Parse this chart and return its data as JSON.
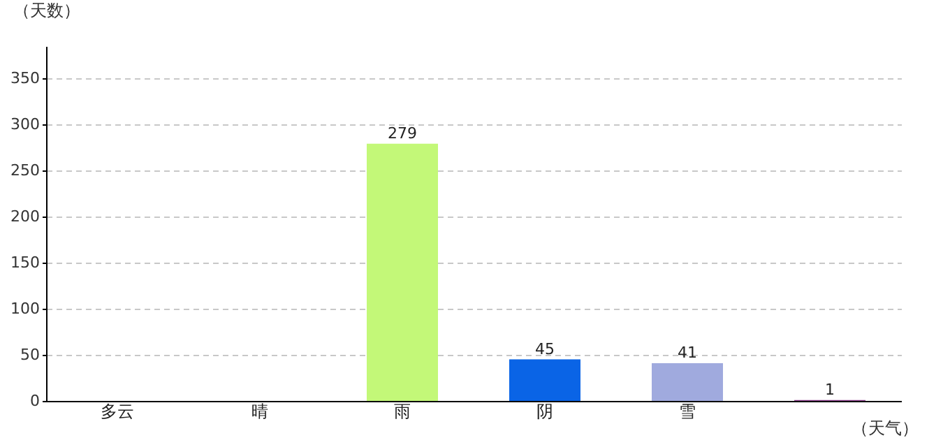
{
  "chart_data": {
    "type": "bar",
    "xlabel": "（天气）",
    "ylabel": "（天数）",
    "categories": [
      "多云",
      "晴",
      "雨",
      "阴",
      "雪",
      null
    ],
    "values": [
      null,
      null,
      279,
      45,
      41,
      1
    ],
    "colors": [
      "#5f5fc8",
      "#aaa55a",
      "#c3f878",
      "#0a64e6",
      "#a0aade",
      "#8c3c8c"
    ],
    "ylim": [
      0,
      385
    ],
    "yticks": [
      0,
      50,
      100,
      150,
      200,
      250,
      300,
      350
    ],
    "grid": "y",
    "data_labels": true
  }
}
